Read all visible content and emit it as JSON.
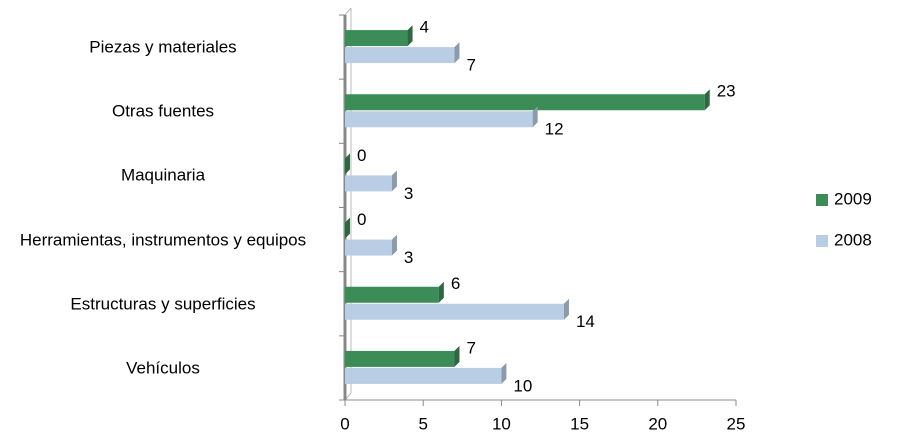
{
  "chart_data": {
    "type": "bar",
    "orientation": "horizontal",
    "categories": [
      "Piezas y materiales",
      "Otras fuentes",
      "Maquinaria",
      "Herramientas, instrumentos y equipos",
      "Estructuras y superficies",
      "Vehículos"
    ],
    "series": [
      {
        "name": "2009",
        "color": "#3b8c57",
        "values": [
          4,
          23,
          0,
          0,
          6,
          7
        ]
      },
      {
        "name": "2008",
        "color": "#b9cde5",
        "values": [
          7,
          12,
          3,
          3,
          14,
          10
        ]
      }
    ],
    "xlim": [
      0,
      25
    ],
    "xticks": [
      0,
      5,
      10,
      15,
      20,
      25
    ],
    "legend": "right"
  }
}
